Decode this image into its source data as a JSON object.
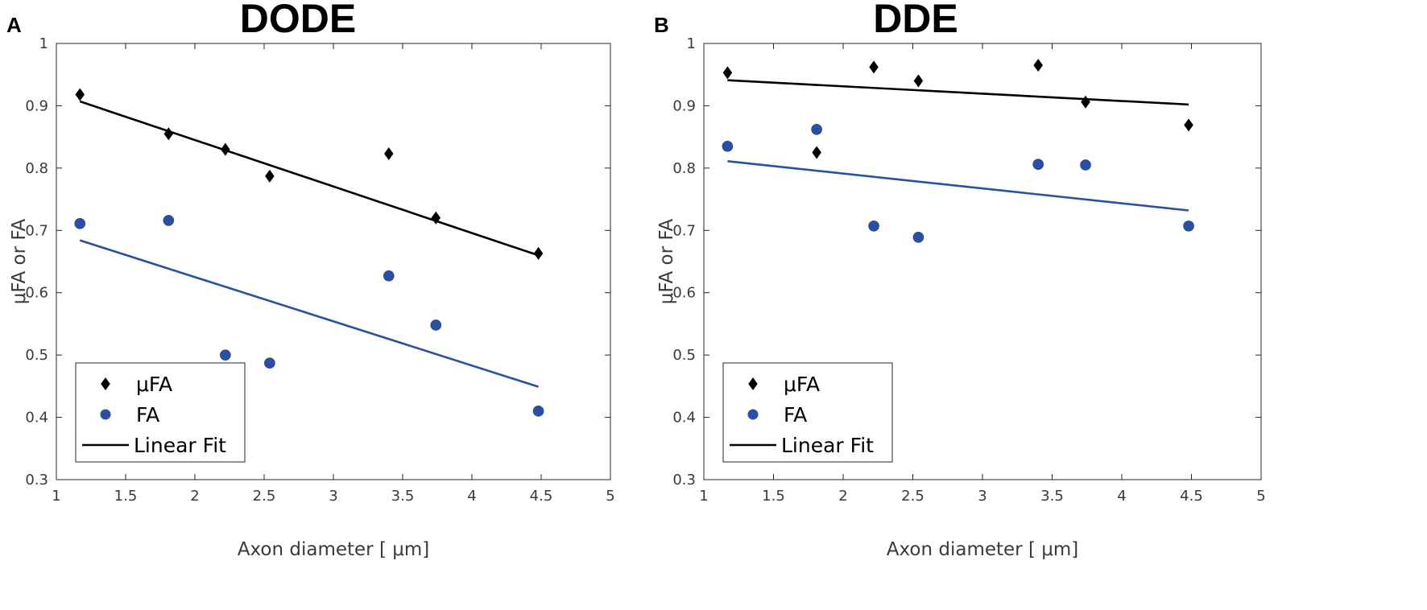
{
  "chart_data": [
    {
      "type": "scatter",
      "panel_label": "A",
      "title": "DODE",
      "xlabel": "Axon diameter [  μm]",
      "ylabel": "μFA or FA",
      "xlim": [
        1,
        5
      ],
      "ylim": [
        0.3,
        1
      ],
      "x_ticks": [
        1,
        1.5,
        2,
        2.5,
        3,
        3.5,
        4,
        4.5,
        5
      ],
      "y_ticks": [
        0.3,
        0.4,
        0.5,
        0.6,
        0.7,
        0.8,
        0.9,
        1
      ],
      "x_tick_labels": [
        "1",
        "1.5",
        "2",
        "2.5",
        "3",
        "3.5",
        "4",
        "4.5",
        "5"
      ],
      "y_tick_labels": [
        "0.3",
        "0.4",
        "0.5",
        "0.6",
        "0.7",
        "0.8",
        "0.9",
        "1"
      ],
      "series": [
        {
          "name": "μFA",
          "marker": "diamond",
          "color": "#000000",
          "x": [
            1.17,
            1.81,
            2.22,
            2.54,
            3.4,
            3.74,
            4.48
          ],
          "y": [
            0.918,
            0.855,
            0.83,
            0.787,
            0.823,
            0.72,
            0.663
          ],
          "fit": [
            [
              1.17,
              0.907
            ],
            [
              4.48,
              0.66
            ]
          ]
        },
        {
          "name": "FA",
          "marker": "circle",
          "color": "#2a4fa3",
          "x": [
            1.17,
            1.81,
            2.22,
            2.54,
            3.4,
            3.74,
            4.48
          ],
          "y": [
            0.711,
            0.716,
            0.5,
            0.487,
            0.627,
            0.548,
            0.41
          ],
          "fit": [
            [
              1.17,
              0.684
            ],
            [
              4.48,
              0.449
            ]
          ]
        }
      ],
      "legend": {
        "position": "lower-left",
        "entries": [
          {
            "label": "μFA",
            "marker": "diamond"
          },
          {
            "label": "FA",
            "marker": "circle"
          },
          {
            "label": "Linear Fit",
            "marker": "line"
          }
        ]
      }
    },
    {
      "type": "scatter",
      "panel_label": "B",
      "title": "DDE",
      "xlabel": "Axon diameter [  μm]",
      "ylabel": "μFA or FA",
      "xlim": [
        1,
        5
      ],
      "ylim": [
        0.3,
        1
      ],
      "x_ticks": [
        1,
        1.5,
        2,
        2.5,
        3,
        3.5,
        4,
        4.5,
        5
      ],
      "y_ticks": [
        0.3,
        0.4,
        0.5,
        0.6,
        0.7,
        0.8,
        0.9,
        1
      ],
      "x_tick_labels": [
        "1",
        "1.5",
        "2",
        "2.5",
        "3",
        "3.5",
        "4",
        "4.5",
        "5"
      ],
      "y_tick_labels": [
        "0.3",
        "0.4",
        "0.5",
        "0.6",
        "0.7",
        "0.8",
        "0.9",
        "1"
      ],
      "series": [
        {
          "name": "μFA",
          "marker": "diamond",
          "color": "#000000",
          "x": [
            1.17,
            1.81,
            2.22,
            2.54,
            3.4,
            3.74,
            4.48
          ],
          "y": [
            0.953,
            0.825,
            0.962,
            0.94,
            0.965,
            0.906,
            0.869
          ],
          "fit": [
            [
              1.17,
              0.941
            ],
            [
              4.48,
              0.902
            ]
          ]
        },
        {
          "name": "FA",
          "marker": "circle",
          "color": "#2a4fa3",
          "x": [
            1.17,
            1.81,
            2.22,
            2.54,
            3.4,
            3.74,
            4.48
          ],
          "y": [
            0.835,
            0.862,
            0.707,
            0.689,
            0.806,
            0.805,
            0.707
          ],
          "fit": [
            [
              1.17,
              0.811
            ],
            [
              4.48,
              0.732
            ]
          ]
        }
      ],
      "legend": {
        "position": "lower-left",
        "entries": [
          {
            "label": "μFA",
            "marker": "diamond"
          },
          {
            "label": "FA",
            "marker": "circle"
          },
          {
            "label": "Linear Fit",
            "marker": "line"
          }
        ]
      }
    }
  ]
}
